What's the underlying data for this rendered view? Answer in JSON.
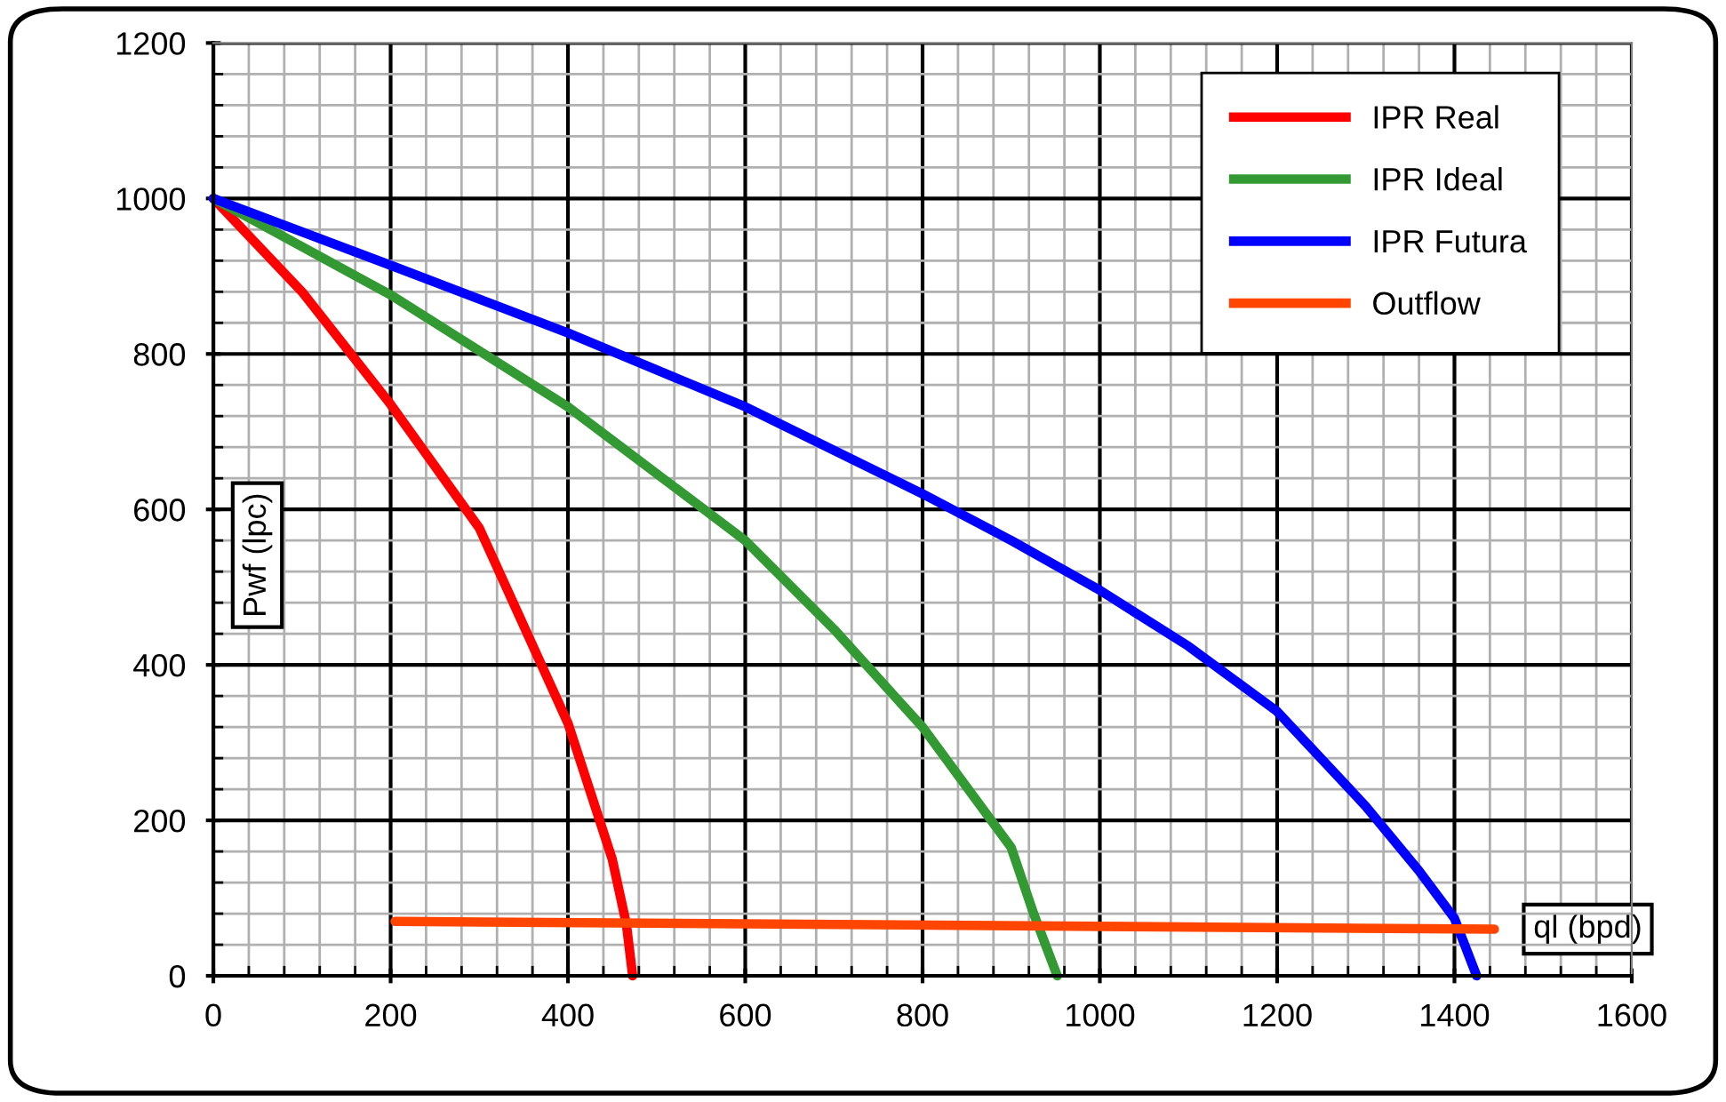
{
  "chart_data": {
    "type": "line",
    "xlabel": "ql (bpd)",
    "ylabel": "Pwf (lpc)",
    "xlim": [
      0,
      1600
    ],
    "xticks": [
      0,
      200,
      400,
      600,
      800,
      1000,
      1200,
      1400,
      1600
    ],
    "ylim": [
      0,
      1200
    ],
    "yticks": [
      0,
      200,
      400,
      600,
      800,
      1000,
      1200
    ],
    "grid": true,
    "legend": "top right",
    "marker": "none",
    "line_style": "solid",
    "series": [
      {
        "name": "IPR Real",
        "color": "#ff0000",
        "x": [
          0,
          100,
          200,
          300,
          400,
          450,
          466,
          473
        ],
        "values": [
          1000,
          880,
          735,
          576,
          325,
          150,
          66,
          0
        ]
      },
      {
        "name": "IPR Ideal",
        "color": "#339933",
        "x": [
          0,
          200,
          400,
          600,
          700,
          800,
          900,
          925,
          952
        ],
        "values": [
          1000,
          876,
          732,
          560,
          446,
          320,
          165,
          81,
          0
        ]
      },
      {
        "name": "IPR Futura",
        "color": "#0000ff",
        "x": [
          0,
          200,
          400,
          600,
          800,
          900,
          1000,
          1100,
          1200,
          1300,
          1360,
          1400,
          1425
        ],
        "values": [
          1000,
          914,
          827,
          732,
          620,
          560,
          496,
          424,
          340,
          218,
          135,
          74,
          0
        ]
      },
      {
        "name": "Outflow",
        "color": "#ff4500",
        "x": [
          205,
          1445
        ],
        "values": [
          70,
          60
        ]
      }
    ]
  }
}
